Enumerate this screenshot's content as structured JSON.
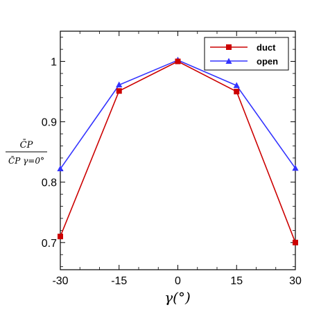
{
  "chart_data": {
    "type": "line",
    "x": [
      -30,
      -15,
      0,
      15,
      30
    ],
    "series": [
      {
        "name": "duct",
        "color": "#cc0000",
        "marker": "square",
        "values": [
          0.71,
          0.951,
          1.0,
          0.95,
          0.7
        ]
      },
      {
        "name": "open",
        "color": "#3333ff",
        "marker": "triangle",
        "values": [
          0.822,
          0.961,
          1.002,
          0.96,
          0.823
        ]
      }
    ],
    "xlim": [
      -30,
      30
    ],
    "ylim": [
      0.655,
      1.05
    ],
    "xticks": [
      -30,
      -15,
      0,
      15,
      30
    ],
    "xtick_labels": [
      "-30",
      "-15",
      "0",
      "15",
      "30"
    ],
    "yticks": [
      0.7,
      0.8,
      0.9,
      1.0
    ],
    "ytick_labels": [
      "0.7",
      "0.8",
      "0.9",
      "1"
    ],
    "xlabel": "γ(°)",
    "ylabel_numerator": "C̄P",
    "ylabel_denominator": "C̄P γ=0°",
    "legend_position": "top-right",
    "grid": false
  }
}
